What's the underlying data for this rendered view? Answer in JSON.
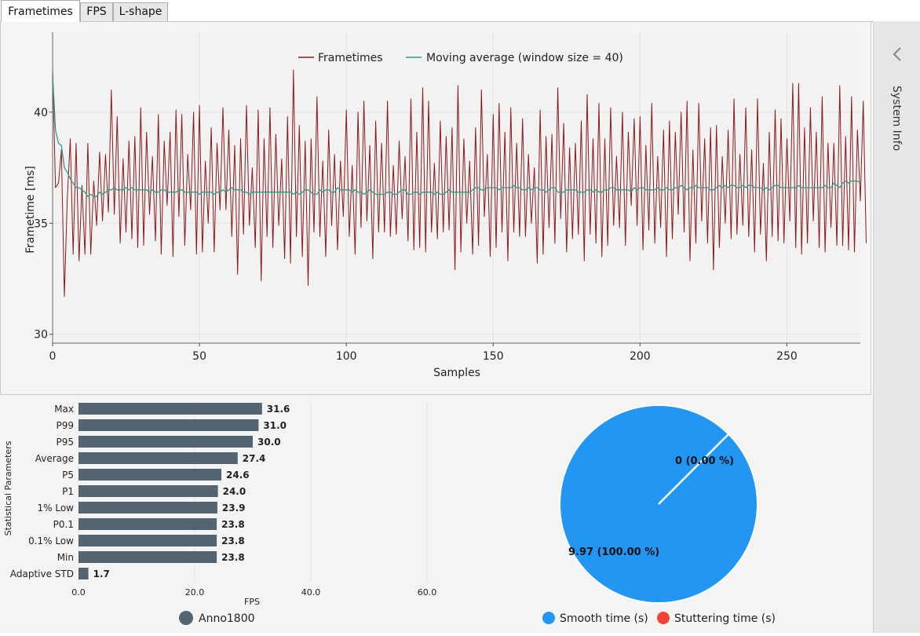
{
  "tabs": [
    {
      "label": "Frametimes",
      "active": true
    },
    {
      "label": "FPS",
      "active": false
    },
    {
      "label": "L-shape",
      "active": false
    }
  ],
  "sidebar": {
    "label": "System Info",
    "icon": "chevron-left-icon"
  },
  "colors": {
    "frametime": "#8b1a1a",
    "moving_average": "#2e9a8a",
    "bar": "#546471",
    "smooth": "#2196f3",
    "stutter": "#f44336"
  },
  "chart_data": [
    {
      "type": "line",
      "title": "",
      "xlabel": "Samples",
      "ylabel": "Frametime [ms]",
      "xlim": [
        0,
        275
      ],
      "ylim": [
        29.6,
        43.6
      ],
      "xticks": [
        0,
        50,
        100,
        150,
        200,
        250
      ],
      "yticks": [
        30,
        35,
        40
      ],
      "grid": true,
      "legend": "top-center",
      "series": [
        {
          "name": "Frametimes",
          "values": [
            42.0,
            36.6,
            36.8,
            38.3,
            31.7,
            36.1,
            38.8,
            33.6,
            38.6,
            33.3,
            36.7,
            33.6,
            38.6,
            33.6,
            36.9,
            34.9,
            38.2,
            35.1,
            38.1,
            35.5,
            41.0,
            35.4,
            39.8,
            34.1,
            37.9,
            34.6,
            38.7,
            34.3,
            38.9,
            33.9,
            40.2,
            34.0,
            39.1,
            35.4,
            38.0,
            34.2,
            39.9,
            33.6,
            38.7,
            35.8,
            39.1,
            33.5,
            40.1,
            35.3,
            39.9,
            34.0,
            38.1,
            35.6,
            40.0,
            33.6,
            40.3,
            33.7,
            37.8,
            35.0,
            39.3,
            33.7,
            38.6,
            35.6,
            40.2,
            35.6,
            39.2,
            34.4,
            38.5,
            32.7,
            38.8,
            34.5,
            40.3,
            34.9,
            37.5,
            33.9,
            40.1,
            32.4,
            38.8,
            34.4,
            40.2,
            33.9,
            39.0,
            34.9,
            37.9,
            33.4,
            39.8,
            33.2,
            41.9,
            34.4,
            39.4,
            33.5,
            38.7,
            32.2,
            38.8,
            34.6,
            40.7,
            34.4,
            37.8,
            33.5,
            39.2,
            34.9,
            38.1,
            33.8,
            37.8,
            35.3,
            40.1,
            34.4,
            37.6,
            33.6,
            40.0,
            34.8,
            40.5,
            35.1,
            38.5,
            33.4,
            39.6,
            34.6,
            38.6,
            34.6,
            40.5,
            34.4,
            37.6,
            34.5,
            38.7,
            35.2,
            38.0,
            34.2,
            40.6,
            33.8,
            39.1,
            33.9,
            41.1,
            33.7,
            40.5,
            34.6,
            37.7,
            34.3,
            39.6,
            34.6,
            38.9,
            34.7,
            39.3,
            32.9,
            41.2,
            33.7,
            38.8,
            35.0,
            37.8,
            33.6,
            39.3,
            34.0,
            41.0,
            35.3,
            38.1,
            33.5,
            39.9,
            33.9,
            40.4,
            34.6,
            39.1,
            33.3,
            40.2,
            34.6,
            38.6,
            34.4,
            39.7,
            34.4,
            38.1,
            35.0,
            37.5,
            33.2,
            40.1,
            33.6,
            38.9,
            34.8,
            39.0,
            34.1,
            41.1,
            35.2,
            39.5,
            33.7,
            38.4,
            34.3,
            38.6,
            34.5,
            39.6,
            33.3,
            40.8,
            34.5,
            38.8,
            34.1,
            40.4,
            33.5,
            38.8,
            34.0,
            40.2,
            34.9,
            38.0,
            34.8,
            40.0,
            34.0,
            39.1,
            35.8,
            39.7,
            34.9,
            39.8,
            33.8,
            38.5,
            34.7,
            40.4,
            34.1,
            38.0,
            34.8,
            39.2,
            33.5,
            39.6,
            34.3,
            39.1,
            35.4,
            40.0,
            34.6,
            40.5,
            33.3,
            38.3,
            34.1,
            40.4,
            35.1,
            38.8,
            34.1,
            39.3,
            32.9,
            39.4,
            33.9,
            38.0,
            35.0,
            39.2,
            34.3,
            40.6,
            34.5,
            38.1,
            34.9,
            40.2,
            34.4,
            38.3,
            33.7,
            40.6,
            34.5,
            37.7,
            33.3,
            39.1,
            34.4,
            40.1,
            34.2,
            39.7,
            34.1,
            38.8,
            35.1,
            41.3,
            33.9,
            41.3,
            33.6,
            39.3,
            34.1,
            40.2,
            35.1,
            39.1,
            33.9,
            40.7,
            33.7,
            38.6,
            34.8,
            38.6,
            34.0,
            41.2,
            34.0,
            38.9,
            33.8,
            40.7,
            33.7,
            39.2,
            36.0,
            40.5,
            34.1
          ],
          "color_key": "frametime"
        },
        {
          "name": "Moving average (window size = 40)",
          "values": [
            41.7,
            39.2,
            38.6,
            38.5,
            37.5,
            37.3,
            37.0,
            36.8,
            36.6,
            36.6,
            36.5,
            36.4,
            36.2,
            36.3,
            36.2,
            36.2,
            36.4,
            36.3,
            36.4,
            36.5,
            36.5,
            36.6,
            36.5,
            36.5,
            36.5,
            36.6,
            36.5,
            36.6,
            36.5,
            36.5,
            36.5,
            36.5,
            36.5,
            36.4,
            36.5,
            36.4,
            36.4,
            36.5,
            36.5,
            36.4,
            36.4,
            36.4,
            36.4,
            36.5,
            36.5,
            36.4,
            36.4,
            36.4,
            36.4,
            36.4,
            36.3,
            36.4,
            36.4,
            36.4,
            36.4,
            36.3,
            36.4,
            36.4,
            36.5,
            36.4,
            36.5,
            36.6,
            36.5,
            36.5,
            36.5,
            36.4,
            36.4,
            36.3,
            36.4,
            36.4,
            36.4,
            36.4,
            36.4,
            36.4,
            36.4,
            36.4,
            36.4,
            36.4,
            36.4,
            36.4,
            36.4,
            36.4,
            36.3,
            36.4,
            36.3,
            36.4,
            36.5,
            36.5,
            36.4,
            36.3,
            36.3,
            36.5,
            36.4,
            36.5,
            36.5,
            36.4,
            36.4,
            36.6,
            36.5,
            36.5,
            36.5,
            36.5,
            36.4,
            36.5,
            36.4,
            36.4,
            36.3,
            36.4,
            36.5,
            36.4,
            36.3,
            36.3,
            36.3,
            36.3,
            36.4,
            36.4,
            36.3,
            36.3,
            36.4,
            36.5,
            36.5,
            36.3,
            36.3,
            36.4,
            36.4,
            36.3,
            36.4,
            36.4,
            36.4,
            36.4,
            36.3,
            36.4,
            36.3,
            36.3,
            36.4,
            36.5,
            36.4,
            36.4,
            36.4,
            36.4,
            36.4,
            36.4,
            36.4,
            36.5,
            36.6,
            36.6,
            36.5,
            36.5,
            36.6,
            36.6,
            36.6,
            36.6,
            36.5,
            36.6,
            36.6,
            36.6,
            36.6,
            36.7,
            36.6,
            36.6,
            36.5,
            36.5,
            36.6,
            36.5,
            36.6,
            36.6,
            36.5,
            36.5,
            36.4,
            36.5,
            36.6,
            36.6,
            36.4,
            36.4,
            36.4,
            36.5,
            36.5,
            36.5,
            36.5,
            36.4,
            36.4,
            36.4,
            36.5,
            36.5,
            36.4,
            36.5,
            36.4,
            36.4,
            36.5,
            36.5,
            36.6,
            36.6,
            36.5,
            36.5,
            36.5,
            36.5,
            36.5,
            36.4,
            36.6,
            36.5,
            36.6,
            36.6,
            36.5,
            36.5,
            36.5,
            36.5,
            36.6,
            36.5,
            36.5,
            36.6,
            36.5,
            36.5,
            36.6,
            36.6,
            36.7,
            36.6,
            36.5,
            36.6,
            36.6,
            36.7,
            36.6,
            36.6,
            36.6,
            36.6,
            36.5,
            36.5,
            36.6,
            36.7,
            36.6,
            36.7,
            36.6,
            36.7,
            36.7,
            36.6,
            36.6,
            36.7,
            36.6,
            36.7,
            36.7,
            36.6,
            36.6,
            36.6,
            36.5,
            36.6,
            36.5,
            36.6,
            36.7,
            36.7,
            36.6,
            36.6,
            36.6,
            36.6,
            36.6,
            36.6,
            36.7,
            36.6,
            36.6,
            36.6,
            36.6,
            36.6,
            36.6,
            36.6,
            36.6,
            36.7,
            36.6,
            36.6,
            36.8,
            36.7,
            36.6,
            36.8,
            36.9,
            36.8,
            36.9,
            36.9,
            36.9,
            36.8
          ],
          "color_key": "moving_average"
        }
      ]
    },
    {
      "type": "bar",
      "orientation": "horizontal",
      "xlabel": "FPS",
      "ylabel": "Statistical Parameters",
      "xlim": [
        0,
        70
      ],
      "xticks": [
        "0.0",
        "20.0",
        "40.0",
        "60.0"
      ],
      "legend": "bottom",
      "categories": [
        "Max",
        "P99",
        "P95",
        "Average",
        "P5",
        "P1",
        "1% Low",
        "P0.1",
        "0.1% Low",
        "Min",
        "Adaptive STD"
      ],
      "series": [
        {
          "name": "Anno1800",
          "values": [
            31.6,
            31.0,
            30.0,
            27.4,
            24.6,
            24.0,
            23.9,
            23.8,
            23.8,
            23.8,
            1.7
          ]
        }
      ],
      "value_labels": [
        "31.6",
        "31.0",
        "30.0",
        "27.4",
        "24.6",
        "24.0",
        "23.9",
        "23.8",
        "23.8",
        "23.8",
        "1.7"
      ]
    },
    {
      "type": "pie",
      "legend": "bottom",
      "slices": [
        {
          "name": "Smooth time (s)",
          "value": 9.97,
          "label": "9.97 (100.00 %)",
          "color_key": "smooth"
        },
        {
          "name": "Stuttering time (s)",
          "value": 0,
          "label": "0 (0.00 %)",
          "color_key": "stutter"
        }
      ]
    }
  ]
}
